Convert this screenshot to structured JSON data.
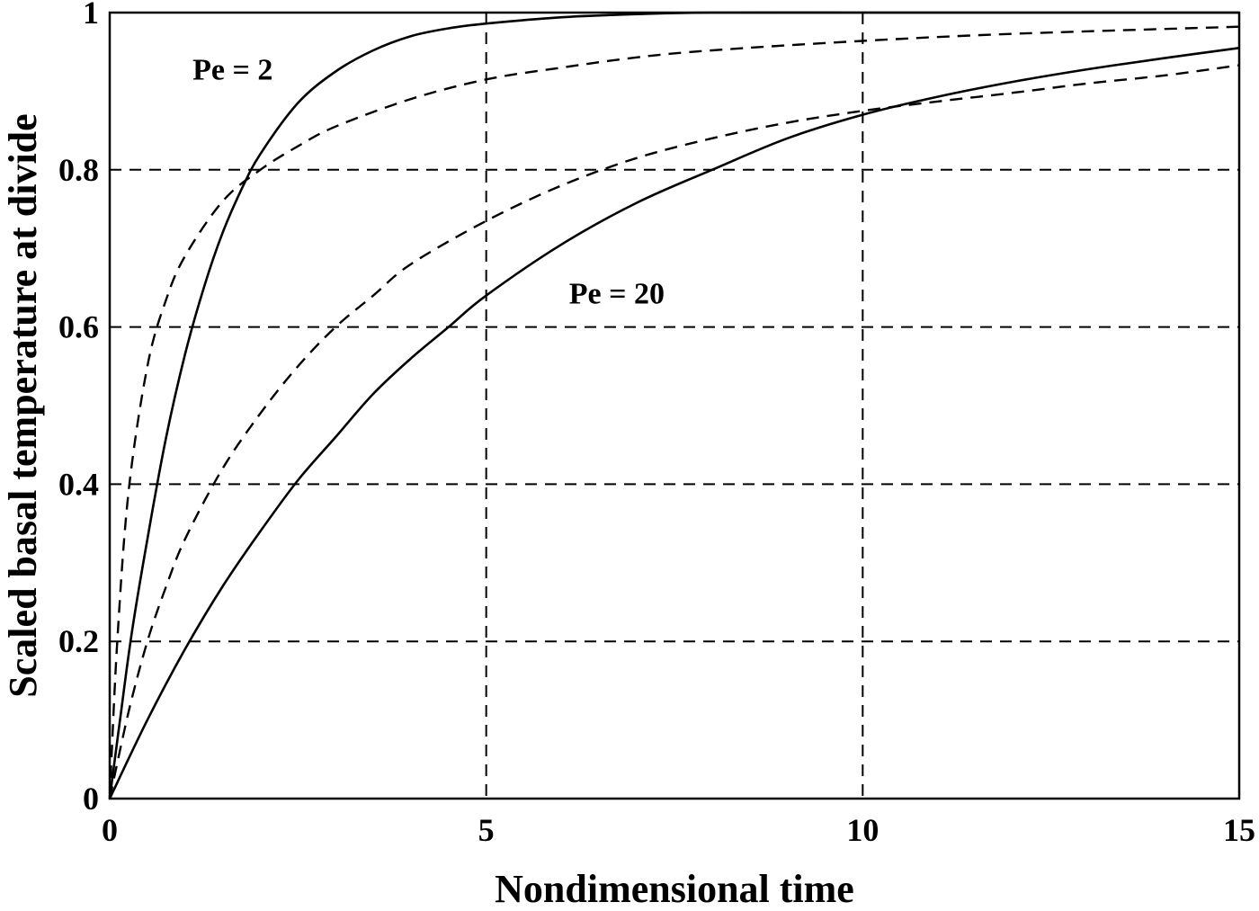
{
  "chart_data": {
    "type": "line",
    "xlabel": "Nondimensional time",
    "ylabel": "Scaled basal temperature at divide",
    "xlim": [
      0,
      15
    ],
    "ylim": [
      0,
      1
    ],
    "x_ticks": [
      0,
      5,
      10,
      15
    ],
    "x_tick_labels": [
      "0",
      "5",
      "10",
      "15"
    ],
    "y_ticks": [
      0,
      0.2,
      0.4,
      0.6,
      0.8,
      1
    ],
    "y_tick_labels": [
      "0",
      "0.2",
      "0.4",
      "0.6",
      "0.8",
      "1"
    ],
    "grid": true,
    "series": [
      {
        "style": "solid",
        "x": [
          0,
          0.15,
          0.3,
          0.5,
          0.75,
          1,
          1.25,
          1.5,
          1.75,
          2,
          2.5,
          3,
          3.5,
          4,
          4.5,
          5,
          6,
          7,
          8,
          10,
          12,
          15
        ],
        "y": [
          0,
          0.11,
          0.215,
          0.33,
          0.46,
          0.565,
          0.65,
          0.72,
          0.775,
          0.82,
          0.885,
          0.925,
          0.952,
          0.97,
          0.98,
          0.986,
          0.994,
          0.998,
          1.0,
          1.0,
          1.0,
          1.0
        ]
      },
      {
        "style": "dashed",
        "x": [
          0,
          0.1,
          0.25,
          0.5,
          0.75,
          1,
          1.5,
          2,
          2.5,
          3,
          4,
          5,
          6,
          7,
          8,
          10,
          12,
          15
        ],
        "y": [
          0,
          0.2,
          0.39,
          0.55,
          0.635,
          0.69,
          0.76,
          0.8,
          0.83,
          0.855,
          0.89,
          0.915,
          0.93,
          0.943,
          0.952,
          0.964,
          0.973,
          0.982
        ]
      },
      {
        "style": "solid",
        "x": [
          0,
          0.5,
          1,
          1.5,
          2,
          2.5,
          3,
          3.5,
          4,
          4.5,
          5,
          6,
          7,
          8,
          9,
          10,
          11,
          12,
          13,
          14,
          15
        ],
        "y": [
          0,
          0.1,
          0.19,
          0.27,
          0.34,
          0.405,
          0.46,
          0.515,
          0.56,
          0.6,
          0.64,
          0.705,
          0.758,
          0.8,
          0.84,
          0.87,
          0.893,
          0.912,
          0.928,
          0.942,
          0.955
        ]
      },
      {
        "style": "dashed",
        "x": [
          0,
          0.25,
          0.5,
          0.75,
          1,
          1.5,
          2,
          2.5,
          3,
          3.5,
          4,
          5,
          6,
          7,
          8,
          9,
          10,
          11,
          12,
          13,
          14,
          15
        ],
        "y": [
          0,
          0.11,
          0.2,
          0.27,
          0.33,
          0.42,
          0.49,
          0.55,
          0.6,
          0.64,
          0.68,
          0.735,
          0.78,
          0.815,
          0.84,
          0.86,
          0.875,
          0.887,
          0.898,
          0.91,
          0.92,
          0.933
        ]
      }
    ],
    "annotations": [
      {
        "text": "Pe = 2",
        "x": 1.1,
        "y": 0.915
      },
      {
        "text": "Pe = 20",
        "x": 6.1,
        "y": 0.63
      }
    ]
  }
}
